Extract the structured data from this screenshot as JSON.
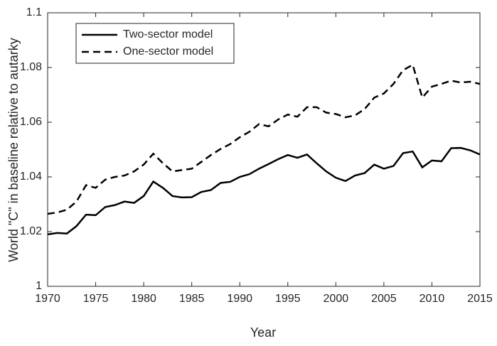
{
  "chart_data": {
    "type": "line",
    "x": [
      1970,
      1971,
      1972,
      1973,
      1974,
      1975,
      1976,
      1977,
      1978,
      1979,
      1980,
      1981,
      1982,
      1983,
      1984,
      1985,
      1986,
      1987,
      1988,
      1989,
      1990,
      1991,
      1992,
      1993,
      1994,
      1995,
      1996,
      1997,
      1998,
      1999,
      2000,
      2001,
      2002,
      2003,
      2004,
      2005,
      2006,
      2007,
      2008,
      2009,
      2010,
      2011,
      2012,
      2013,
      2014,
      2015
    ],
    "series": [
      {
        "name": "Two-sector model",
        "color": "#000000",
        "dash": "solid",
        "values": [
          1.019,
          1.0195,
          1.0193,
          1.022,
          1.0262,
          1.026,
          1.029,
          1.0297,
          1.031,
          1.0305,
          1.033,
          1.0383,
          1.036,
          1.033,
          1.0325,
          1.0326,
          1.0345,
          1.0352,
          1.0378,
          1.0382,
          1.04,
          1.041,
          1.043,
          1.0447,
          1.0465,
          1.048,
          1.047,
          1.0482,
          1.045,
          1.042,
          1.0397,
          1.0385,
          1.0405,
          1.0414,
          1.0445,
          1.043,
          1.044,
          1.0487,
          1.0493,
          1.0435,
          1.046,
          1.0457,
          1.0505,
          1.0506,
          1.0497,
          1.0482
        ]
      },
      {
        "name": "One-sector model",
        "color": "#000000",
        "dash": "dashed",
        "values": [
          1.0265,
          1.027,
          1.028,
          1.031,
          1.037,
          1.036,
          1.039,
          1.04,
          1.0405,
          1.042,
          1.0445,
          1.0485,
          1.045,
          1.042,
          1.0425,
          1.043,
          1.0455,
          1.048,
          1.0502,
          1.052,
          1.0545,
          1.0565,
          1.0593,
          1.0585,
          1.061,
          1.0628,
          1.062,
          1.0655,
          1.0655,
          1.0635,
          1.063,
          1.0618,
          1.0625,
          1.0648,
          1.069,
          1.0705,
          1.074,
          1.079,
          1.081,
          1.069,
          1.073,
          1.074,
          1.0752,
          1.0745,
          1.0748,
          1.074
        ]
      }
    ],
    "xlabel": "Year",
    "ylabel": "World \"C\" in baseline relative to autarky",
    "xlim": [
      1970,
      2015
    ],
    "xticks": [
      1970,
      1975,
      1980,
      1985,
      1990,
      1995,
      2000,
      2005,
      2010,
      2015
    ],
    "ylim": [
      1,
      1.1
    ],
    "yticks": [
      1,
      1.02,
      1.04,
      1.06,
      1.08,
      1.1
    ],
    "legend": "upper-left",
    "grid": false
  }
}
